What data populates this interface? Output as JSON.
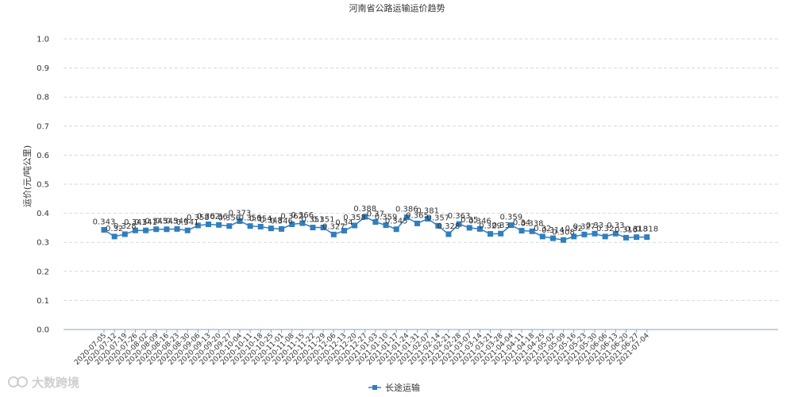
{
  "chart_data": {
    "type": "line",
    "title": "河南省公路运输运价趋势",
    "ylabel": "运价(元/吨公里)",
    "xlabel": "",
    "ylim": [
      0,
      1.0
    ],
    "yticks": [
      "0.0",
      "0.1",
      "0.2",
      "0.3",
      "0.4",
      "0.5",
      "0.6",
      "0.7",
      "0.8",
      "0.9",
      "1.0"
    ],
    "grid": "horizontal-dashed",
    "legend_position": "bottom",
    "categories": [
      "2020-07-05",
      "2020-07-12",
      "2020-07-19",
      "2020-07-26",
      "2020-08-02",
      "2020-08-09",
      "2020-08-16",
      "2020-08-23",
      "2020-08-30",
      "2020-09-06",
      "2020-09-13",
      "2020-09-20",
      "2020-09-27",
      "2020-10-04",
      "2020-10-11",
      "2020-10-18",
      "2020-10-25",
      "2020-11-01",
      "2020-11-08",
      "2020-11-15",
      "2020-11-22",
      "2020-11-29",
      "2020-12-06",
      "2020-12-13",
      "2020-12-20",
      "2020-12-27",
      "2021-01-03",
      "2021-01-10",
      "2021-01-17",
      "2021-01-24",
      "2021-01-31",
      "2021-02-07",
      "2021-02-14",
      "2021-02-21",
      "2021-02-28",
      "2021-03-07",
      "2021-03-14",
      "2021-03-21",
      "2021-03-28",
      "2021-04-04",
      "2021-04-11",
      "2021-04-18",
      "2021-04-25",
      "2021-05-02",
      "2021-05-09",
      "2021-05-16",
      "2021-05-23",
      "2021-05-30",
      "2021-06-06",
      "2021-06-13",
      "2021-06-20",
      "2021-06-27",
      "2021-07-04"
    ],
    "series": [
      {
        "name": "长途运输",
        "color": "#2f7ebf",
        "values": [
          0.343,
          0.32,
          0.328,
          0.341,
          0.341,
          0.345,
          0.345,
          0.346,
          0.341,
          0.358,
          0.362,
          0.36,
          0.356,
          0.373,
          0.356,
          0.354,
          0.348,
          0.346,
          0.362,
          0.366,
          0.351,
          0.351,
          0.327,
          0.34,
          0.358,
          0.388,
          0.37,
          0.359,
          0.345,
          0.386,
          0.365,
          0.381,
          0.357,
          0.328,
          0.363,
          0.35,
          0.346,
          0.329,
          0.33,
          0.359,
          0.34,
          0.338,
          0.32,
          0.314,
          0.308,
          0.32,
          0.327,
          0.33,
          0.32,
          0.33,
          0.316,
          0.318,
          0.318
        ],
        "labels": [
          "0.343",
          "0.32",
          "0.328",
          "0.341",
          "0.341",
          "0.345",
          "0.345",
          "0.346",
          "0.341",
          "0.358",
          "0.362",
          "0.36",
          "0.356",
          "0.373",
          "0.356",
          "0.354",
          "0.348",
          "0.346",
          "0.362",
          "0.366",
          "0.351",
          "0.351",
          "0.327",
          "0.34",
          "0.358",
          "0.388",
          "0.37",
          "0.359",
          "0.345",
          "0.386",
          "0.365",
          "0.381",
          "0.357",
          "0.328",
          "0.363",
          "0.35",
          "0.346",
          "0.329",
          "0.33",
          "0.359",
          "0.34",
          "0.338",
          "0.32",
          "0.314",
          "0.308",
          "0.32",
          "0.327",
          "0.33",
          "0.32",
          "0.33",
          "0.316",
          "0.318",
          "0.318"
        ]
      }
    ]
  },
  "watermark": {
    "text": "大数跨境",
    "icon": "logo-icon"
  }
}
